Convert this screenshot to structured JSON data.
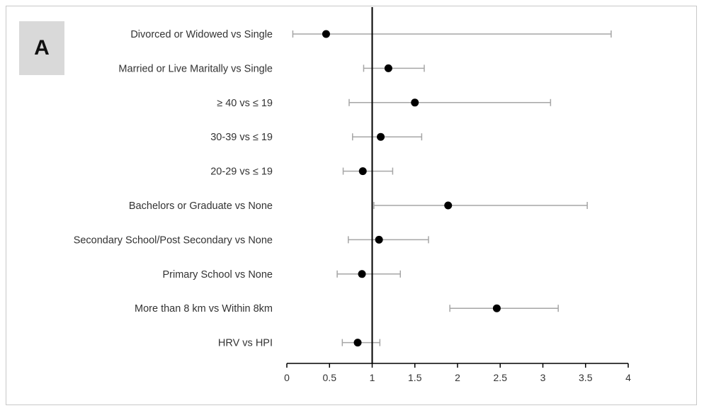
{
  "panel_label": "A",
  "chart_data": {
    "type": "scatter",
    "subtype": "forest-plot",
    "title": "",
    "xlabel": "",
    "ylabel": "",
    "xlim": [
      0,
      4
    ],
    "xticks": [
      0,
      0.5,
      1,
      1.5,
      2,
      2.5,
      3,
      3.5,
      4
    ],
    "xtick_labels": [
      "0",
      "0.5",
      "1",
      "1.5",
      "2",
      "2.5",
      "3",
      "3.5",
      "4"
    ],
    "reference_line": 1,
    "grid": false,
    "legend": "none",
    "colors": {
      "points": "#000000",
      "whiskers": "#a6a6a6",
      "reference": "#000000",
      "axis": "#000000"
    },
    "rows": [
      {
        "label": "Divorced or Widowed vs Single",
        "estimate": 0.46,
        "lower": 0.07,
        "upper": 3.8
      },
      {
        "label": "Married or Live Maritally vs Single",
        "estimate": 1.19,
        "lower": 0.9,
        "upper": 1.61
      },
      {
        "label": "≥ 40 vs ≤ 19",
        "estimate": 1.5,
        "lower": 0.73,
        "upper": 3.09
      },
      {
        "label": "30-39 vs ≤ 19",
        "estimate": 1.1,
        "lower": 0.77,
        "upper": 1.58
      },
      {
        "label": "20-29  vs ≤ 19",
        "estimate": 0.89,
        "lower": 0.66,
        "upper": 1.24
      },
      {
        "label": "Bachelors or Graduate vs None",
        "estimate": 1.89,
        "lower": 1.02,
        "upper": 3.52
      },
      {
        "label": "Secondary School/Post Secondary vs None",
        "estimate": 1.08,
        "lower": 0.72,
        "upper": 1.66
      },
      {
        "label": "Primary School vs None",
        "estimate": 0.88,
        "lower": 0.59,
        "upper": 1.33
      },
      {
        "label": "More than 8 km vs Within 8km",
        "estimate": 2.46,
        "lower": 1.91,
        "upper": 3.18
      },
      {
        "label": "HRV vs HPI",
        "estimate": 0.83,
        "lower": 0.65,
        "upper": 1.09
      }
    ]
  }
}
